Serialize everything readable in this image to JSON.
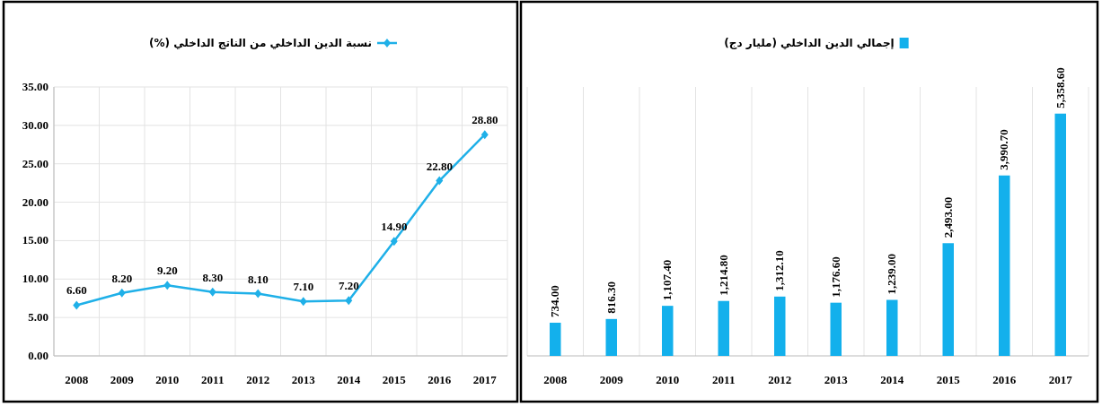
{
  "chart_data": [
    {
      "type": "line",
      "categories": [
        "2008",
        "2009",
        "2010",
        "2011",
        "2012",
        "2013",
        "2014",
        "2015",
        "2016",
        "2017"
      ],
      "series": [
        {
          "name": "نسبة الدين الداخلي من الناتج الداخلي (%)",
          "color": "#1fb0e8",
          "values": [
            6.6,
            8.2,
            9.2,
            8.3,
            8.1,
            7.1,
            7.2,
            14.9,
            22.8,
            28.8
          ],
          "value_labels": [
            "6.60",
            "8.20",
            "9.20",
            "8.30",
            "8.10",
            "7.10",
            "7.20",
            "14.90",
            "22.80",
            "28.80"
          ]
        }
      ],
      "ylim": [
        0,
        35
      ],
      "yticks": [
        {
          "value": 0,
          "label": "0.00"
        },
        {
          "value": 5,
          "label": "5.00"
        },
        {
          "value": 10,
          "label": "10.00"
        },
        {
          "value": 15,
          "label": "15.00"
        },
        {
          "value": 20,
          "label": "20.00"
        },
        {
          "value": 25,
          "label": "25.00"
        },
        {
          "value": 30,
          "label": "30.00"
        },
        {
          "value": 35,
          "label": "35.00"
        }
      ],
      "grid": true,
      "legend": "top",
      "marker": "diamond"
    },
    {
      "type": "bar",
      "categories": [
        "2008",
        "2009",
        "2010",
        "2011",
        "2012",
        "2013",
        "2014",
        "2015",
        "2016",
        "2017"
      ],
      "series": [
        {
          "name": "إجمالي الدين الداخلي (مليار دج)",
          "color": "#13b0ec",
          "values": [
            734.0,
            816.3,
            1107.4,
            1214.8,
            1312.1,
            1176.6,
            1239.0,
            2493.0,
            3990.7,
            5358.6
          ],
          "value_labels": [
            "734.00",
            "816.30",
            "1,107.40",
            "1,214.80",
            "1,312.10",
            "1,176.60",
            "1,239.00",
            "2,493.00",
            "3,990.70",
            "5,358.60"
          ]
        }
      ],
      "grid": "x",
      "legend": "top"
    }
  ]
}
